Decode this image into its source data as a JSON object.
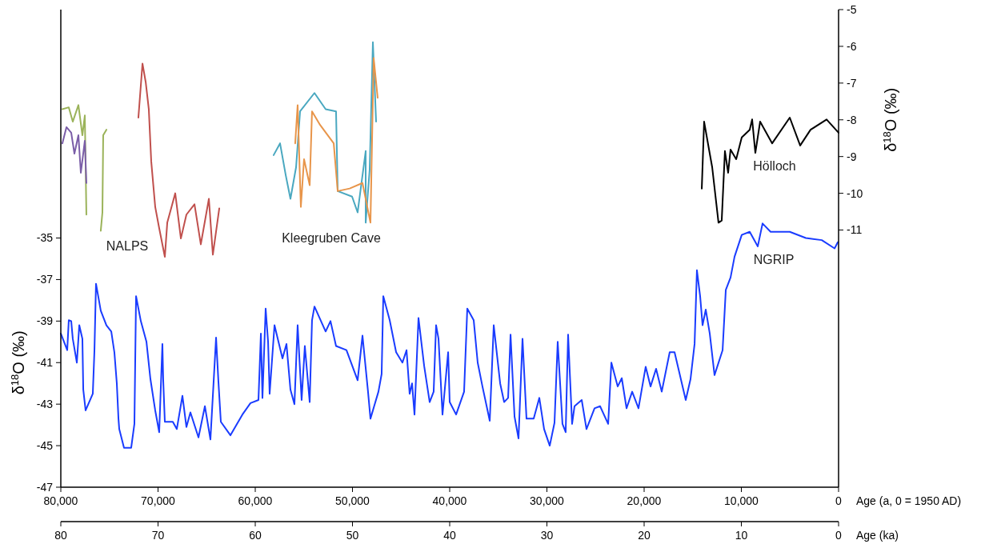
{
  "chart_data": {
    "type": "line",
    "ylabel": "δ$^{18}$O (‰)",
    "y2label": "δ$^{18}$O (‰)",
    "xlabel": "Age (a, 0 = 1950 AD)",
    "x2label": "Age (ka)",
    "xlim": [
      80000,
      0
    ],
    "xticks": [
      {
        "value": 80000,
        "label": "80,000"
      },
      {
        "value": 70000,
        "label": "70,000"
      },
      {
        "value": 60000,
        "label": "60,000"
      },
      {
        "value": 50000,
        "label": "50,000"
      },
      {
        "value": 40000,
        "label": "40,000"
      },
      {
        "value": 30000,
        "label": "30,000"
      },
      {
        "value": 20000,
        "label": "20,000"
      },
      {
        "value": 10000,
        "label": "10,000"
      },
      0
    ],
    "x2lim": [
      80,
      0
    ],
    "x2ticks": [
      80,
      70,
      60,
      50,
      40,
      30,
      20,
      10,
      0
    ],
    "ylim": [
      -47,
      -24
    ],
    "yticks": [
      -47,
      -45,
      -43,
      -41,
      -39,
      -37,
      -35
    ],
    "y2lim": [
      -18,
      -5
    ],
    "y2ticks": [
      -11,
      -10,
      -9,
      -8,
      -7,
      -6,
      -5
    ],
    "annotations": [
      "NALPS",
      "Kleegruben Cave",
      "Hölloch",
      "NGRIP"
    ],
    "series": [
      {
        "color": "#1a3cff",
        "x": [
          80000,
          79340,
          79180,
          78930,
          78770,
          78350,
          78100,
          77780,
          77690,
          77450,
          76710,
          76540,
          76380,
          75890,
          75310,
          74810,
          74490,
          74240,
          74070,
          73990,
          73500,
          72760,
          72430,
          72260,
          71770,
          71190,
          70780,
          70290,
          69880,
          69550,
          69470,
          69300,
          68480,
          68070,
          67490,
          67080,
          66670,
          65840,
          65180,
          64610,
          64030,
          63790,
          63540,
          62550,
          61320,
          60490,
          59670,
          59420,
          59260,
          58930,
          58680,
          58520,
          58020,
          57200,
          56790,
          56380,
          55970,
          55640,
          55230,
          54900,
          54400,
          54160,
          53910,
          52760,
          52260,
          51690,
          50620,
          49470,
          48970,
          48400,
          48150,
          47330,
          47000,
          46830,
          46170,
          45510,
          44860,
          44440,
          44120,
          43870,
          43620,
          43210,
          42630,
          42060,
          41650,
          41400,
          41150,
          40740,
          40160,
          40000,
          39340,
          38520,
          38190,
          37530,
          37120,
          36630,
          35880,
          35470,
          34810,
          34400,
          33990,
          33740,
          33330,
          32920,
          32510,
          32100,
          31360,
          30780,
          30290,
          29710,
          29220,
          28890,
          28400,
          28070,
          27820,
          27410,
          27160,
          26420,
          25930,
          25100,
          24530,
          23700,
          23370,
          22720,
          22300,
          21810,
          21230,
          20580,
          19840,
          19340,
          18770,
          18190,
          17370,
          16870,
          15720,
          15230,
          14810,
          14570,
          14240,
          13990,
          13660,
          13250,
          12760,
          11930,
          11600,
          11110,
          10700,
          9960,
          9140,
          8310,
          7820,
          6990,
          5020,
          3370,
          1730,
          410,
          80
        ],
        "values": [
          -39.6,
          -40.4,
          -38.96,
          -39.0,
          -39.85,
          -41.0,
          -39.2,
          -39.85,
          -42.3,
          -43.3,
          -42.5,
          -40.4,
          -37.2,
          -38.5,
          -39.2,
          -39.5,
          -40.5,
          -42.0,
          -43.7,
          -44.2,
          -45.1,
          -45.1,
          -43.95,
          -37.8,
          -39.0,
          -40.0,
          -41.8,
          -43.3,
          -44.35,
          -40.1,
          -41.8,
          -43.85,
          -43.85,
          -44.2,
          -42.6,
          -44.1,
          -43.4,
          -44.6,
          -43.1,
          -44.7,
          -39.8,
          -41.9,
          -43.85,
          -44.5,
          -43.5,
          -42.95,
          -42.8,
          -39.6,
          -42.7,
          -38.4,
          -40.0,
          -42.5,
          -39.2,
          -40.8,
          -40.1,
          -42.3,
          -43.0,
          -39.2,
          -42.8,
          -40.2,
          -42.9,
          -38.96,
          -38.3,
          -39.5,
          -39.0,
          -40.2,
          -40.4,
          -41.85,
          -39.7,
          -42.4,
          -43.7,
          -42.4,
          -41.55,
          -37.8,
          -38.96,
          -40.5,
          -41.0,
          -40.4,
          -42.5,
          -42.0,
          -43.5,
          -38.85,
          -41.15,
          -42.9,
          -42.4,
          -39.2,
          -39.85,
          -43.5,
          -40.5,
          -42.9,
          -43.5,
          -42.4,
          -38.4,
          -38.96,
          -41.0,
          -42.15,
          -43.8,
          -39.2,
          -42.0,
          -42.9,
          -42.7,
          -39.65,
          -43.6,
          -44.65,
          -39.85,
          -43.7,
          -43.7,
          -42.7,
          -44.2,
          -45.0,
          -43.9,
          -40.0,
          -43.95,
          -44.35,
          -39.65,
          -43.95,
          -43.1,
          -42.8,
          -44.2,
          -43.2,
          -43.1,
          -43.95,
          -41.0,
          -42.15,
          -41.75,
          -43.2,
          -42.4,
          -43.2,
          -41.2,
          -42.15,
          -41.3,
          -42.4,
          -40.5,
          -40.5,
          -42.8,
          -41.8,
          -40.1,
          -36.55,
          -37.8,
          -39.2,
          -38.45,
          -39.6,
          -41.6,
          -40.4,
          -37.5,
          -36.9,
          -35.9,
          -34.85,
          -34.7,
          -35.4,
          -34.3,
          -34.7,
          -34.7,
          -35.0,
          -35.1,
          -35.5,
          -35.2
        ]
      },
      {
        "color": "#000000",
        "axis": "y2",
        "x": [
          14070,
          13830,
          13250,
          13000,
          12350,
          12020,
          11690,
          11360,
          11110,
          10530,
          9960,
          9140,
          8890,
          8560,
          8070,
          6830,
          5020,
          3950,
          2880,
          1230,
          0
        ],
        "values": [
          -9.87,
          -8.05,
          -8.92,
          -9.29,
          -10.8,
          -10.74,
          -8.85,
          -9.44,
          -8.81,
          -9.07,
          -8.48,
          -8.27,
          -7.99,
          -8.9,
          -8.05,
          -8.64,
          -7.94,
          -8.7,
          -8.27,
          -7.99,
          -8.35
        ]
      },
      {
        "color": "#9bb35a",
        "axis": "y2",
        "x": [
          79840,
          79180,
          78770,
          78190,
          77780,
          77530,
          77370
        ],
        "values": [
          -7.71,
          -7.66,
          -8.05,
          -7.6,
          -8.42,
          -7.88,
          -10.58
        ]
      },
      {
        "color": "#7b5ea8",
        "axis": "y2",
        "x": [
          79840,
          79420,
          78930,
          78600,
          78190,
          77940,
          77530,
          77370
        ],
        "values": [
          -8.64,
          -8.2,
          -8.35,
          -8.92,
          -8.42,
          -9.44,
          -8.57,
          -9.72
        ]
      },
      {
        "color": "#9bb35a",
        "axis": "y2",
        "x": [
          75890,
          75720,
          75640,
          75310
        ],
        "values": [
          -11.02,
          -10.52,
          -8.42,
          -8.27
        ]
      },
      {
        "color": "#c0504d",
        "axis": "y2",
        "x": [
          72020,
          71600,
          71270,
          70950,
          70700,
          70290,
          69880,
          69300,
          69050,
          68230,
          67650,
          67080,
          66250,
          65600,
          64770,
          64360,
          63700
        ],
        "values": [
          -7.94,
          -6.47,
          -6.97,
          -7.71,
          -9.13,
          -10.37,
          -10.95,
          -11.73,
          -10.8,
          -10.0,
          -11.23,
          -10.58,
          -10.3,
          -11.39,
          -10.15,
          -11.67,
          -10.41
        ]
      },
      {
        "color": "#4aa8c0",
        "axis": "y2",
        "x": [
          58110,
          57450,
          56870,
          56380,
          55800,
          55390,
          53910,
          52760,
          51690,
          51520,
          50040,
          49470,
          48640,
          48640,
          48230,
          47900,
          47570
        ],
        "values": [
          -8.96,
          -8.64,
          -9.5,
          -10.15,
          -9.29,
          -7.77,
          -7.27,
          -7.71,
          -7.77,
          -9.94,
          -10.09,
          -10.52,
          -8.85,
          -10.8,
          -9.35,
          -5.89,
          -8.05
        ]
      },
      {
        "color": "#e8954a",
        "axis": "y2",
        "x": [
          55890,
          55640,
          55310,
          54980,
          54400,
          54160,
          53330,
          51930,
          51520,
          50290,
          48970,
          48150,
          47820,
          47410
        ],
        "values": [
          -8.64,
          -7.6,
          -10.37,
          -9.07,
          -9.78,
          -7.77,
          -8.14,
          -8.64,
          -9.94,
          -9.87,
          -9.72,
          -10.8,
          -6.32,
          -7.4
        ]
      }
    ]
  }
}
